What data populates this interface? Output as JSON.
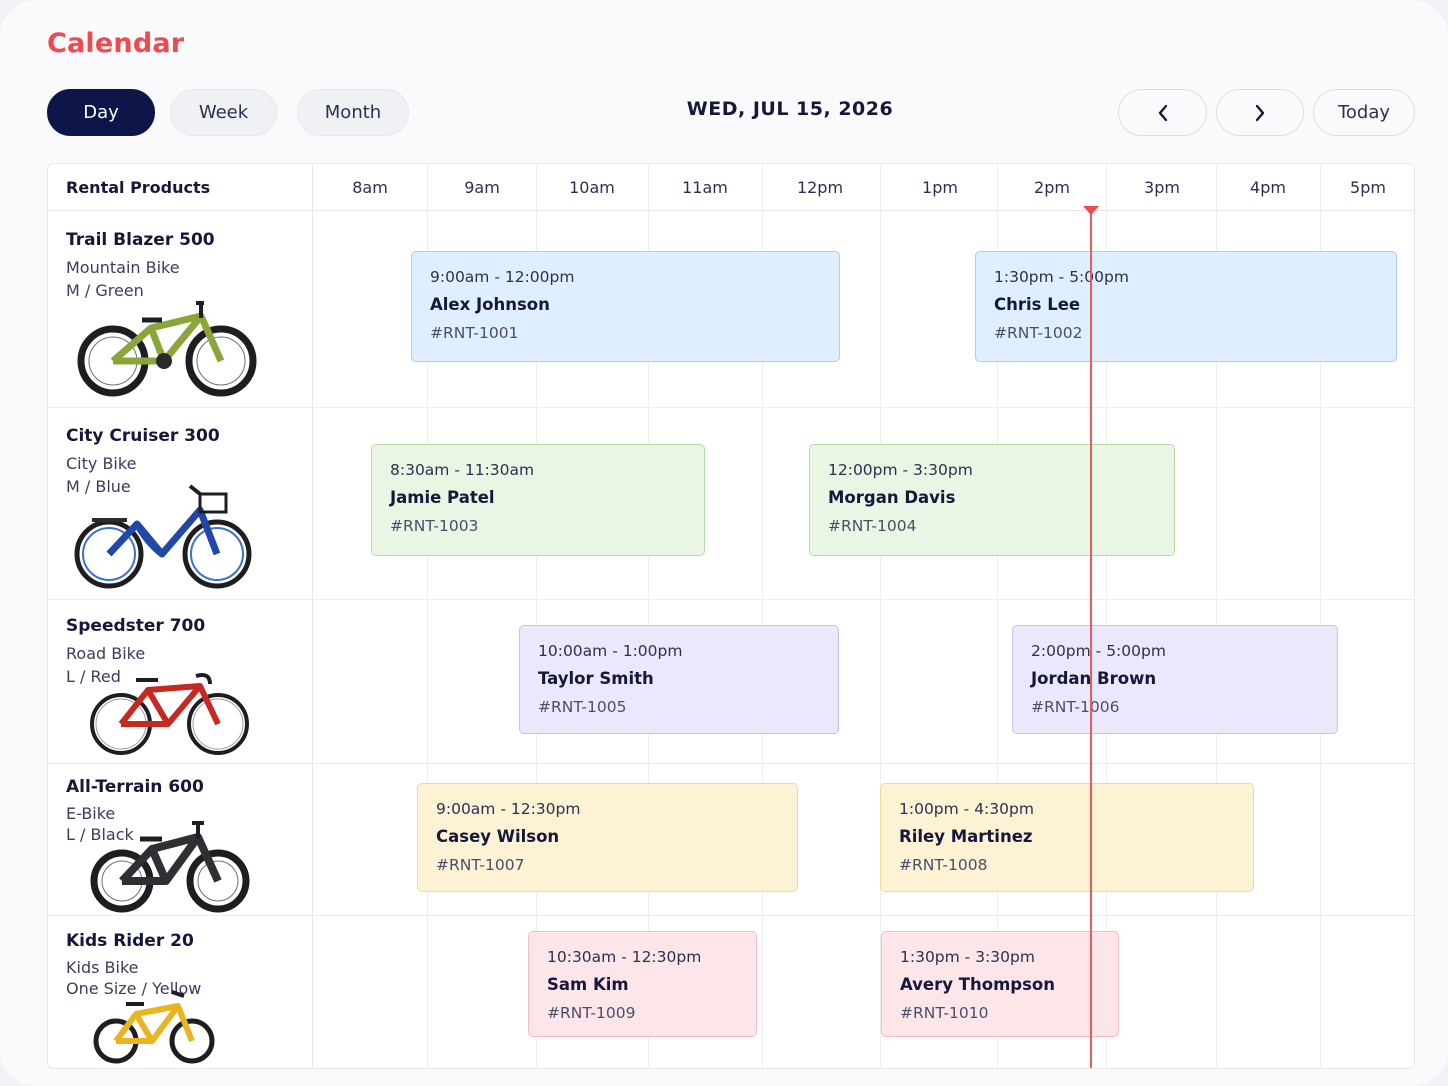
{
  "header": {
    "title": "Calendar",
    "views": [
      {
        "label": "Day",
        "active": true
      },
      {
        "label": "Week",
        "active": false
      },
      {
        "label": "Month",
        "active": false
      }
    ],
    "date_label": "WED, JUL 15, 2026",
    "prev_icon": "chevron-left-icon",
    "next_icon": "chevron-right-icon",
    "today_label": "Today"
  },
  "colors": {
    "accent": "#ee4a4f",
    "primary": "#0e1649",
    "blue": "#e0efff",
    "green": "#e9f6e4",
    "purple": "#ece8fc",
    "yellow": "#fdf3d4",
    "pink": "#fde6ea"
  },
  "grid": {
    "column_header": "Rental Products",
    "hours": [
      "8am",
      "9am",
      "10am",
      "11am",
      "12pm",
      "1pm",
      "2pm",
      "3pm",
      "4pm",
      "5pm"
    ],
    "current_time": "2:10pm"
  },
  "products": [
    {
      "name": "Trail Blazer 500",
      "type": "Mountain Bike",
      "variant": "M / Green",
      "icon": "mountain-bike-icon",
      "bookings": [
        {
          "time": "9:00am - 12:00pm",
          "customer": "Alex Johnson",
          "id": "#RNT-1001"
        },
        {
          "time": "1:30pm - 5:00pm",
          "customer": "Chris Lee",
          "id": "#RNT-1002"
        }
      ]
    },
    {
      "name": "City Cruiser 300",
      "type": "City Bike",
      "variant": "M / Blue",
      "icon": "city-bike-icon",
      "bookings": [
        {
          "time": "8:30am - 11:30am",
          "customer": "Jamie Patel",
          "id": "#RNT-1003"
        },
        {
          "time": "12:00pm - 3:30pm",
          "customer": "Morgan Davis",
          "id": "#RNT-1004"
        }
      ]
    },
    {
      "name": "Speedster 700",
      "type": "Road Bike",
      "variant": "L / Red",
      "icon": "road-bike-icon",
      "bookings": [
        {
          "time": "10:00am - 1:00pm",
          "customer": "Taylor Smith",
          "id": "#RNT-1005"
        },
        {
          "time": "2:00pm - 5:00pm",
          "customer": "Jordan Brown",
          "id": "#RNT-1006"
        }
      ]
    },
    {
      "name": "All-Terrain 600",
      "type": "E-Bike",
      "variant": "L / Black",
      "icon": "e-bike-icon",
      "bookings": [
        {
          "time": "9:00am - 12:30pm",
          "customer": "Casey Wilson",
          "id": "#RNT-1007"
        },
        {
          "time": "1:00pm - 4:30pm",
          "customer": "Riley Martinez",
          "id": "#RNT-1008"
        }
      ]
    },
    {
      "name": "Kids Rider 20",
      "type": "Kids Bike",
      "variant": "One Size / Yellow",
      "icon": "kids-bike-icon",
      "bookings": [
        {
          "time": "10:30am - 12:30pm",
          "customer": "Sam Kim",
          "id": "#RNT-1009"
        },
        {
          "time": "1:30pm - 3:30pm",
          "customer": "Avery Thompson",
          "id": "#RNT-1010"
        }
      ]
    }
  ]
}
